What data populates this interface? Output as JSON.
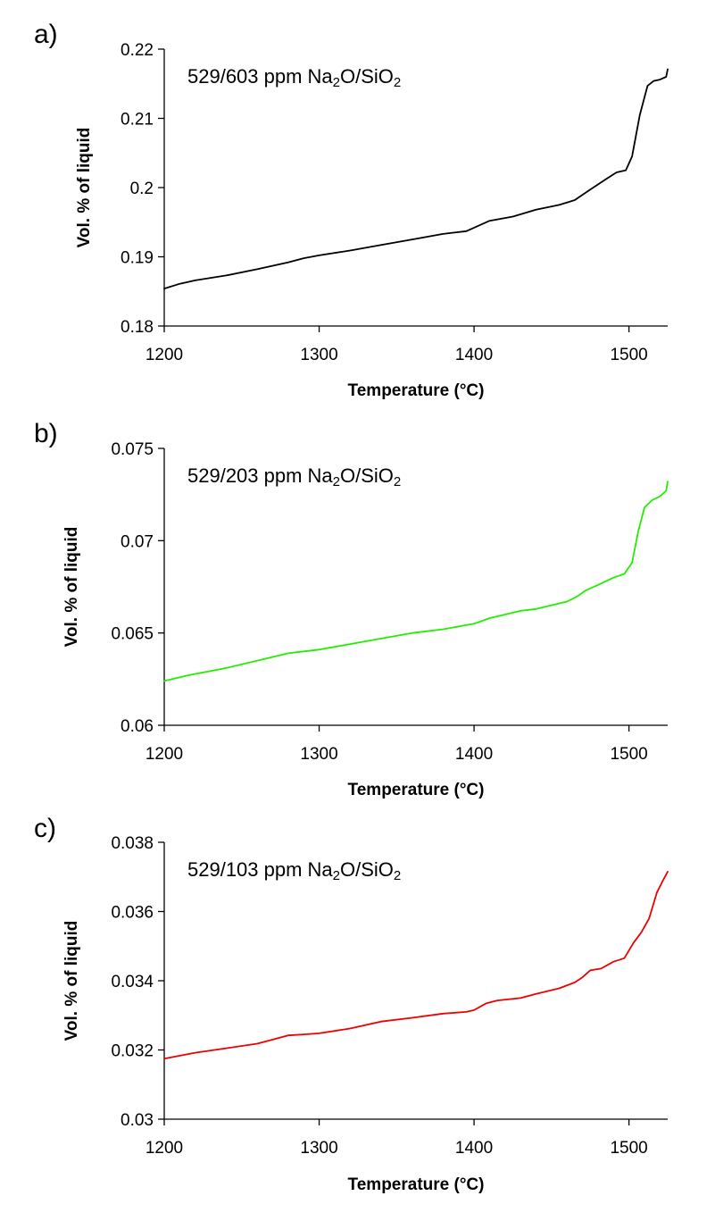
{
  "chart_data": [
    {
      "panel_label": "a)",
      "type": "line",
      "annotation": {
        "prefix": "529/603 ppm Na",
        "sub1": "2",
        "middle": "O/SiO",
        "sub2": "2"
      },
      "xlabel": "Temperature (°C)",
      "ylabel": "Vol. % of liquid",
      "xlim": [
        1200,
        1525
      ],
      "ylim": [
        0.18,
        0.22
      ],
      "xticks": [
        1200,
        1300,
        1400,
        1500
      ],
      "yticks": [
        0.18,
        0.19,
        0.2,
        0.21,
        0.22
      ],
      "ytick_labels": [
        "0.18",
        "0.19",
        "0.2",
        "0.21",
        "0.22"
      ],
      "color": "#000000",
      "series": [
        {
          "x": [
            1200,
            1210,
            1220,
            1240,
            1260,
            1280,
            1290,
            1300,
            1320,
            1340,
            1360,
            1380,
            1395,
            1400,
            1410,
            1425,
            1440,
            1455,
            1465,
            1475,
            1485,
            1492,
            1498,
            1502,
            1507,
            1512,
            1516,
            1520,
            1524,
            1525
          ],
          "values": [
            0.1854,
            0.1861,
            0.1866,
            0.1873,
            0.1882,
            0.1892,
            0.1898,
            0.1902,
            0.1909,
            0.1917,
            0.1925,
            0.1933,
            0.1937,
            0.1942,
            0.1952,
            0.1958,
            0.1968,
            0.1975,
            0.1982,
            0.1997,
            0.2012,
            0.2022,
            0.2025,
            0.2045,
            0.2105,
            0.2147,
            0.2154,
            0.2156,
            0.216,
            0.2171
          ]
        }
      ]
    },
    {
      "panel_label": "b)",
      "type": "line",
      "annotation": {
        "prefix": "529/203 ppm Na",
        "sub1": "2",
        "middle": "O/SiO",
        "sub2": "2"
      },
      "xlabel": "Temperature (°C)",
      "ylabel": "Vol. % of liquid",
      "xlim": [
        1200,
        1525
      ],
      "ylim": [
        0.06,
        0.075
      ],
      "xticks": [
        1200,
        1300,
        1400,
        1500
      ],
      "yticks": [
        0.06,
        0.065,
        0.07,
        0.075
      ],
      "ytick_labels": [
        "0.06",
        "0.065",
        "0.07",
        "0.075"
      ],
      "color": "#22ee00",
      "series": [
        {
          "x": [
            1200,
            1215,
            1240,
            1265,
            1280,
            1290,
            1300,
            1320,
            1340,
            1360,
            1380,
            1400,
            1410,
            1420,
            1430,
            1440,
            1460,
            1467,
            1472,
            1480,
            1490,
            1497,
            1502,
            1506,
            1510,
            1515,
            1520,
            1524,
            1525
          ],
          "values": [
            0.0624,
            0.0627,
            0.0631,
            0.0636,
            0.0639,
            0.064,
            0.0641,
            0.0644,
            0.0647,
            0.065,
            0.0652,
            0.0655,
            0.0658,
            0.066,
            0.0662,
            0.0663,
            0.0667,
            0.067,
            0.0673,
            0.0676,
            0.068,
            0.0682,
            0.0688,
            0.0705,
            0.0718,
            0.0722,
            0.0724,
            0.0727,
            0.0732
          ]
        }
      ]
    },
    {
      "panel_label": "c)",
      "type": "line",
      "annotation": {
        "prefix": "529/103 ppm Na",
        "sub1": "2",
        "middle": "O/SiO",
        "sub2": "2"
      },
      "xlabel": "Temperature (°C)",
      "ylabel": "Vol. % of liquid",
      "xlim": [
        1200,
        1525
      ],
      "ylim": [
        0.03,
        0.038
      ],
      "xticks": [
        1200,
        1300,
        1400,
        1500
      ],
      "yticks": [
        0.03,
        0.032,
        0.034,
        0.036,
        0.038
      ],
      "ytick_labels": [
        "0.03",
        "0.032",
        "0.034",
        "0.036",
        "0.038"
      ],
      "color": "#ee0000",
      "series": [
        {
          "x": [
            1200,
            1220,
            1240,
            1260,
            1270,
            1280,
            1290,
            1300,
            1320,
            1340,
            1360,
            1380,
            1395,
            1400,
            1408,
            1415,
            1430,
            1440,
            1455,
            1465,
            1470,
            1475,
            1482,
            1490,
            1497,
            1503,
            1508,
            1513,
            1518,
            1522,
            1525
          ],
          "values": [
            0.03175,
            0.03192,
            0.03205,
            0.03218,
            0.0323,
            0.03242,
            0.03245,
            0.03248,
            0.03262,
            0.03282,
            0.03293,
            0.03305,
            0.0331,
            0.03315,
            0.03335,
            0.03343,
            0.0335,
            0.03362,
            0.03378,
            0.03395,
            0.0341,
            0.0343,
            0.03435,
            0.03455,
            0.03465,
            0.0351,
            0.0354,
            0.0358,
            0.03655,
            0.0369,
            0.03715
          ]
        }
      ]
    }
  ]
}
